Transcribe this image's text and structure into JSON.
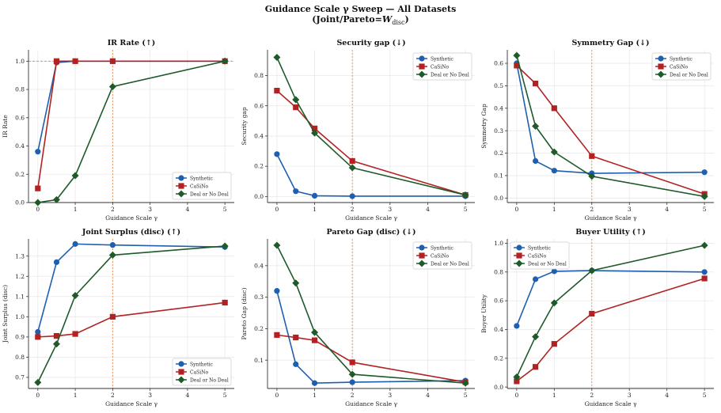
{
  "figure": {
    "title_line1": "Guidance Scale γ Sweep — All Datasets",
    "title_line2": "(Joint/Pareto=W_disc)"
  },
  "colors": {
    "Synthetic": "#1f5fb0",
    "CaSiNo": "#b22222",
    "Deal or No Deal": "#1e5a2a",
    "vline": "#f08a4b",
    "grid": "#e9e9e9"
  },
  "chart_data": [
    {
      "type": "line",
      "title": "IR Rate (↑)",
      "xlabel": "Guidance Scale γ",
      "ylabel": "IR Rate",
      "x": [
        0,
        0.5,
        1,
        2,
        5
      ],
      "xticks": [
        "0",
        "1",
        "2",
        "3",
        "4",
        "5"
      ],
      "ylim": [
        0,
        1.08
      ],
      "yticks": [
        "0.0",
        "0.2",
        "0.4",
        "0.6",
        "0.8",
        "1.0"
      ],
      "hline": 1.0,
      "vline": 2,
      "legend": "lower-right",
      "grid": true,
      "series": [
        {
          "name": "Synthetic",
          "values": [
            0.36,
            0.99,
            1.0,
            1.0,
            1.0
          ]
        },
        {
          "name": "CaSiNo",
          "values": [
            0.1,
            1.0,
            1.0,
            1.0,
            1.0
          ]
        },
        {
          "name": "Deal or No Deal",
          "values": [
            0.0,
            0.02,
            0.19,
            0.82,
            1.0
          ]
        }
      ]
    },
    {
      "type": "line",
      "title": "Security gap (↓)",
      "xlabel": "Guidance Scale γ",
      "ylabel": "Security gap",
      "x": [
        0,
        0.5,
        1,
        2,
        5
      ],
      "xticks": [
        "0",
        "1",
        "2",
        "3",
        "4",
        "5"
      ],
      "ylim": [
        -0.04,
        0.97
      ],
      "yticks": [
        "0.0",
        "0.2",
        "0.4",
        "0.6",
        "0.8"
      ],
      "vline": 2,
      "legend": "top-right",
      "grid": true,
      "series": [
        {
          "name": "Synthetic",
          "values": [
            0.28,
            0.035,
            0.005,
            0.002,
            0.002
          ]
        },
        {
          "name": "CaSiNo",
          "values": [
            0.7,
            0.59,
            0.45,
            0.235,
            0.01
          ]
        },
        {
          "name": "Deal or No Deal",
          "values": [
            0.92,
            0.64,
            0.42,
            0.19,
            0.01
          ]
        }
      ]
    },
    {
      "type": "line",
      "title": "Symmetry Gap (↓)",
      "xlabel": "Guidance Scale γ",
      "ylabel": "Symmetry Gap",
      "x": [
        0,
        0.5,
        1,
        2,
        5
      ],
      "xticks": [
        "0",
        "1",
        "2",
        "3",
        "4",
        "5"
      ],
      "ylim": [
        -0.02,
        0.66
      ],
      "yticks": [
        "0.0",
        "0.1",
        "0.2",
        "0.3",
        "0.4",
        "0.5",
        "0.6"
      ],
      "vline": 2,
      "legend": "top-right",
      "grid": true,
      "series": [
        {
          "name": "Synthetic",
          "values": [
            0.6,
            0.165,
            0.122,
            0.11,
            0.115
          ]
        },
        {
          "name": "CaSiNo",
          "values": [
            0.59,
            0.51,
            0.4,
            0.187,
            0.018
          ]
        },
        {
          "name": "Deal or No Deal",
          "values": [
            0.635,
            0.32,
            0.205,
            0.097,
            0.007
          ]
        }
      ]
    },
    {
      "type": "line",
      "title": "Joint Surplus (disc) (↑)",
      "xlabel": "Guidance Scale γ",
      "ylabel": "Joint Surplus (disc)",
      "x": [
        0,
        0.5,
        1,
        2,
        5
      ],
      "xticks": [
        "0",
        "1",
        "2",
        "3",
        "4",
        "5"
      ],
      "ylim": [
        0.645,
        1.385
      ],
      "yticks": [
        "0.7",
        "0.8",
        "0.9",
        "1.0",
        "1.1",
        "1.2",
        "1.3"
      ],
      "vline": 2,
      "legend": "lower-right",
      "grid": true,
      "series": [
        {
          "name": "Synthetic",
          "values": [
            0.925,
            1.27,
            1.36,
            1.355,
            1.345
          ]
        },
        {
          "name": "CaSiNo",
          "values": [
            0.9,
            0.905,
            0.915,
            1.0,
            1.07
          ]
        },
        {
          "name": "Deal or No Deal",
          "values": [
            0.675,
            0.865,
            1.105,
            1.305,
            1.35
          ]
        }
      ]
    },
    {
      "type": "line",
      "title": "Pareto Gap (disc) (↓)",
      "xlabel": "Guidance Scale γ",
      "ylabel": "Pareto Gap (disc)",
      "x": [
        0,
        0.5,
        1,
        2,
        5
      ],
      "xticks": [
        "0",
        "1",
        "2",
        "3",
        "4",
        "5"
      ],
      "ylim": [
        0.01,
        0.485
      ],
      "yticks": [
        "0.1",
        "0.2",
        "0.3",
        "0.4"
      ],
      "vline": 2,
      "legend": "top-right",
      "grid": true,
      "series": [
        {
          "name": "Synthetic",
          "values": [
            0.32,
            0.087,
            0.027,
            0.03,
            0.035
          ]
        },
        {
          "name": "CaSiNo",
          "values": [
            0.18,
            0.172,
            0.163,
            0.093,
            0.03
          ]
        },
        {
          "name": "Deal or No Deal",
          "values": [
            0.465,
            0.345,
            0.188,
            0.055,
            0.027
          ]
        }
      ]
    },
    {
      "type": "line",
      "title": "Buyer Utility (↑)",
      "xlabel": "Guidance Scale γ",
      "ylabel": "Buyer Utility",
      "x": [
        0,
        0.5,
        1,
        2,
        5
      ],
      "xticks": [
        "0",
        "1",
        "2",
        "3",
        "4",
        "5"
      ],
      "ylim": [
        -0.01,
        1.03
      ],
      "yticks": [
        "0.0",
        "0.2",
        "0.4",
        "0.6",
        "0.8",
        "1.0"
      ],
      "vline": 2,
      "legend": "top-left",
      "grid": true,
      "series": [
        {
          "name": "Synthetic",
          "values": [
            0.425,
            0.75,
            0.805,
            0.81,
            0.8
          ]
        },
        {
          "name": "CaSiNo",
          "values": [
            0.04,
            0.14,
            0.3,
            0.51,
            0.755
          ]
        },
        {
          "name": "Deal or No Deal",
          "values": [
            0.07,
            0.35,
            0.585,
            0.81,
            0.985
          ]
        }
      ]
    }
  ]
}
